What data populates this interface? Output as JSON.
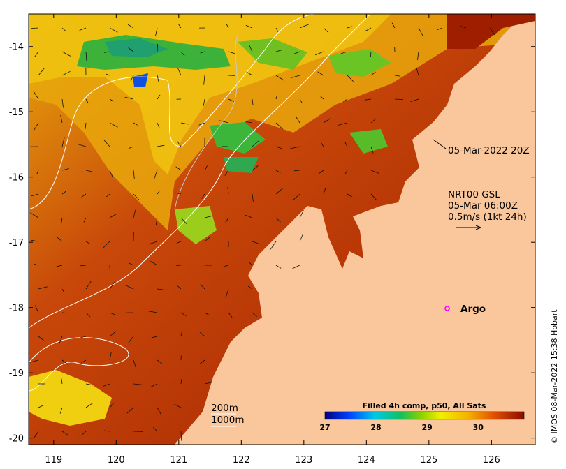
{
  "map": {
    "x_ticks": [
      "119",
      "120",
      "121",
      "122",
      "123",
      "124",
      "125",
      "126"
    ],
    "y_ticks": [
      "-14",
      "-15",
      "-16",
      "-17",
      "-18",
      "-19",
      "-20"
    ],
    "lon_range": [
      118.6,
      126.7
    ],
    "lat_range": [
      -20.1,
      -13.5
    ]
  },
  "annotations": {
    "current_time": "05-Mar-2022 20Z",
    "vector_source": "NRT00 GSL",
    "vector_time": "05-Mar 06:00Z",
    "vector_scale": "0.5m/s (1kt 24h)",
    "argo_label": "Argo",
    "contour_200": "200m",
    "contour_1000": "1000m"
  },
  "colorbar": {
    "title": "Filled 4h comp, p50, All Sats",
    "ticks": [
      "27",
      "28",
      "29",
      "30"
    ],
    "range": [
      27,
      30.9
    ]
  },
  "credit": "© IMOS 08-Mar-2022 15:38 Hobart",
  "colors": {
    "land": "#f9c79b",
    "sea_warm": "#b52a00",
    "sea_mid": "#e0900a",
    "sea_cool": "#7cc21a",
    "sea_cold": "#1e9f6a",
    "argo_marker": "#ff00ff"
  }
}
